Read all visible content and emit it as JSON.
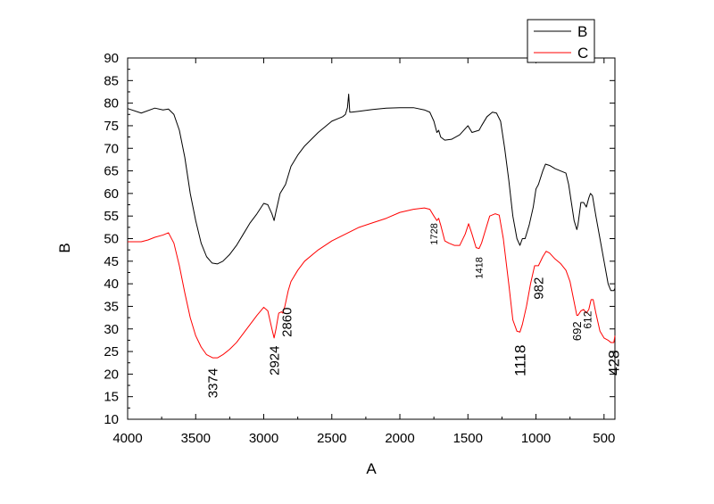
{
  "chart_data": {
    "type": "line",
    "xlabel": "A",
    "ylabel": "B",
    "xlim": [
      4000,
      420
    ],
    "ylim": [
      10,
      90
    ],
    "x_reversed": true,
    "x_ticks": [
      4000,
      3500,
      3000,
      2500,
      2000,
      1500,
      1000,
      500
    ],
    "x_tick_labels": [
      "4000",
      "3500",
      "3000",
      "2500",
      "2000",
      "1500",
      "1000",
      "500"
    ],
    "y_ticks": [
      10,
      15,
      20,
      25,
      30,
      35,
      40,
      45,
      50,
      55,
      60,
      65,
      70,
      75,
      80,
      85,
      90
    ],
    "y_tick_labels": [
      "10",
      "15",
      "20",
      "25",
      "30",
      "35",
      "40",
      "45",
      "50",
      "55",
      "60",
      "65",
      "70",
      "75",
      "80",
      "85",
      "90"
    ],
    "grid": false,
    "legend": {
      "position": "top-right"
    },
    "series": [
      {
        "name": "B",
        "color": "#000000",
        "points": [
          [
            4000,
            78.8
          ],
          [
            3900,
            77.8
          ],
          [
            3800,
            78.9
          ],
          [
            3740,
            78.5
          ],
          [
            3700,
            78.7
          ],
          [
            3660,
            77.5
          ],
          [
            3620,
            74
          ],
          [
            3580,
            68
          ],
          [
            3540,
            60
          ],
          [
            3500,
            54
          ],
          [
            3460,
            49
          ],
          [
            3420,
            46
          ],
          [
            3380,
            44.6
          ],
          [
            3340,
            44.4
          ],
          [
            3300,
            45
          ],
          [
            3250,
            46.5
          ],
          [
            3200,
            48.5
          ],
          [
            3150,
            51
          ],
          [
            3100,
            53.5
          ],
          [
            3050,
            55.5
          ],
          [
            3000,
            57.8
          ],
          [
            2970,
            57.5
          ],
          [
            2940,
            55.5
          ],
          [
            2924,
            54
          ],
          [
            2910,
            56
          ],
          [
            2880,
            60
          ],
          [
            2860,
            61
          ],
          [
            2840,
            62
          ],
          [
            2800,
            66
          ],
          [
            2750,
            68.5
          ],
          [
            2700,
            70.5
          ],
          [
            2600,
            73.5
          ],
          [
            2500,
            76
          ],
          [
            2420,
            77
          ],
          [
            2400,
            77.5
          ],
          [
            2385,
            79
          ],
          [
            2376,
            82
          ],
          [
            2368,
            78
          ],
          [
            2355,
            78
          ],
          [
            2300,
            78.2
          ],
          [
            2200,
            78.6
          ],
          [
            2100,
            78.9
          ],
          [
            2000,
            79
          ],
          [
            1900,
            79
          ],
          [
            1820,
            78.5
          ],
          [
            1780,
            78
          ],
          [
            1750,
            76
          ],
          [
            1728,
            73.5
          ],
          [
            1715,
            74
          ],
          [
            1700,
            72.5
          ],
          [
            1670,
            71.8
          ],
          [
            1620,
            72
          ],
          [
            1560,
            73
          ],
          [
            1500,
            75
          ],
          [
            1470,
            73.5
          ],
          [
            1418,
            74
          ],
          [
            1400,
            75
          ],
          [
            1360,
            77
          ],
          [
            1320,
            78
          ],
          [
            1290,
            77.8
          ],
          [
            1260,
            76
          ],
          [
            1230,
            70
          ],
          [
            1200,
            63
          ],
          [
            1170,
            55
          ],
          [
            1140,
            50
          ],
          [
            1118,
            48.5
          ],
          [
            1100,
            50
          ],
          [
            1080,
            50
          ],
          [
            1050,
            53
          ],
          [
            1020,
            57
          ],
          [
            1000,
            61
          ],
          [
            982,
            62
          ],
          [
            950,
            65
          ],
          [
            930,
            66.5
          ],
          [
            900,
            66.2
          ],
          [
            860,
            65.5
          ],
          [
            820,
            65
          ],
          [
            780,
            64.5
          ],
          [
            760,
            62
          ],
          [
            740,
            58
          ],
          [
            720,
            54
          ],
          [
            700,
            52
          ],
          [
            692,
            53
          ],
          [
            670,
            58
          ],
          [
            650,
            58
          ],
          [
            630,
            57
          ],
          [
            612,
            59
          ],
          [
            600,
            60
          ],
          [
            585,
            59.5
          ],
          [
            560,
            55
          ],
          [
            530,
            50
          ],
          [
            500,
            45
          ],
          [
            470,
            40
          ],
          [
            450,
            38.5
          ],
          [
            428,
            38.5
          ],
          [
            420,
            39
          ]
        ]
      },
      {
        "name": "C",
        "color": "#ff0000",
        "points": [
          [
            4000,
            49.3
          ],
          [
            3900,
            49.3
          ],
          [
            3850,
            49.7
          ],
          [
            3800,
            50.3
          ],
          [
            3740,
            50.8
          ],
          [
            3700,
            51.3
          ],
          [
            3660,
            49
          ],
          [
            3620,
            44
          ],
          [
            3580,
            38
          ],
          [
            3540,
            32.5
          ],
          [
            3500,
            28.5
          ],
          [
            3460,
            26
          ],
          [
            3420,
            24.3
          ],
          [
            3374,
            23.6
          ],
          [
            3340,
            23.6
          ],
          [
            3300,
            24.3
          ],
          [
            3250,
            25.5
          ],
          [
            3200,
            27
          ],
          [
            3150,
            29
          ],
          [
            3100,
            31
          ],
          [
            3050,
            33
          ],
          [
            3000,
            34.8
          ],
          [
            2970,
            34
          ],
          [
            2940,
            30
          ],
          [
            2924,
            28
          ],
          [
            2910,
            30
          ],
          [
            2890,
            33.5
          ],
          [
            2870,
            33.8
          ],
          [
            2860,
            33.5
          ],
          [
            2845,
            35
          ],
          [
            2820,
            38.5
          ],
          [
            2800,
            40.5
          ],
          [
            2750,
            43
          ],
          [
            2700,
            45
          ],
          [
            2600,
            47.5
          ],
          [
            2500,
            49.5
          ],
          [
            2400,
            51
          ],
          [
            2300,
            52.5
          ],
          [
            2200,
            53.5
          ],
          [
            2100,
            54.5
          ],
          [
            2000,
            55.8
          ],
          [
            1900,
            56.5
          ],
          [
            1820,
            56.8
          ],
          [
            1780,
            56.5
          ],
          [
            1750,
            55
          ],
          [
            1728,
            54
          ],
          [
            1715,
            54.5
          ],
          [
            1700,
            53
          ],
          [
            1670,
            49.5
          ],
          [
            1640,
            49
          ],
          [
            1600,
            48.5
          ],
          [
            1560,
            48.5
          ],
          [
            1520,
            51
          ],
          [
            1495,
            53.3
          ],
          [
            1470,
            51
          ],
          [
            1440,
            48
          ],
          [
            1418,
            47.8
          ],
          [
            1400,
            49
          ],
          [
            1370,
            52
          ],
          [
            1340,
            55
          ],
          [
            1300,
            55.5
          ],
          [
            1270,
            55.2
          ],
          [
            1240,
            50
          ],
          [
            1200,
            40
          ],
          [
            1170,
            32
          ],
          [
            1140,
            29.5
          ],
          [
            1118,
            29.3
          ],
          [
            1100,
            31
          ],
          [
            1070,
            35
          ],
          [
            1040,
            40
          ],
          [
            1010,
            44
          ],
          [
            982,
            44
          ],
          [
            950,
            46
          ],
          [
            925,
            47.2
          ],
          [
            900,
            46.8
          ],
          [
            860,
            45.5
          ],
          [
            820,
            44.5
          ],
          [
            780,
            43
          ],
          [
            750,
            40.5
          ],
          [
            720,
            36
          ],
          [
            700,
            33
          ],
          [
            692,
            33
          ],
          [
            670,
            34
          ],
          [
            650,
            34.3
          ],
          [
            630,
            33.5
          ],
          [
            612,
            34.3
          ],
          [
            595,
            36.5
          ],
          [
            580,
            36.5
          ],
          [
            560,
            33.5
          ],
          [
            530,
            29.5
          ],
          [
            500,
            28
          ],
          [
            470,
            27.5
          ],
          [
            450,
            27
          ],
          [
            428,
            27
          ],
          [
            420,
            28.5
          ]
        ]
      }
    ],
    "annotations": [
      {
        "text": "3374",
        "x": 3374,
        "y": 18,
        "color": "#000000"
      },
      {
        "text": "2924",
        "x": 2924,
        "y": 23,
        "color": "#000000"
      },
      {
        "text": "2860",
        "x": 2830,
        "y": 31.5,
        "color": "#000000"
      },
      {
        "text": "1728",
        "x": 1750,
        "y": 51,
        "color": "#000000"
      },
      {
        "text": "1418",
        "x": 1418,
        "y": 43.5,
        "color": "#000000"
      },
      {
        "text": "1118",
        "x": 1118,
        "y": 23,
        "color": "#000000"
      },
      {
        "text": "982",
        "x": 982,
        "y": 39,
        "color": "#000000"
      },
      {
        "text": "692",
        "x": 700,
        "y": 29.5,
        "color": "#000000"
      },
      {
        "text": "612",
        "x": 620,
        "y": 32,
        "color": "#000000"
      },
      {
        "text": "428",
        "x": 430,
        "y": 22.5,
        "color": "#000000"
      }
    ]
  }
}
